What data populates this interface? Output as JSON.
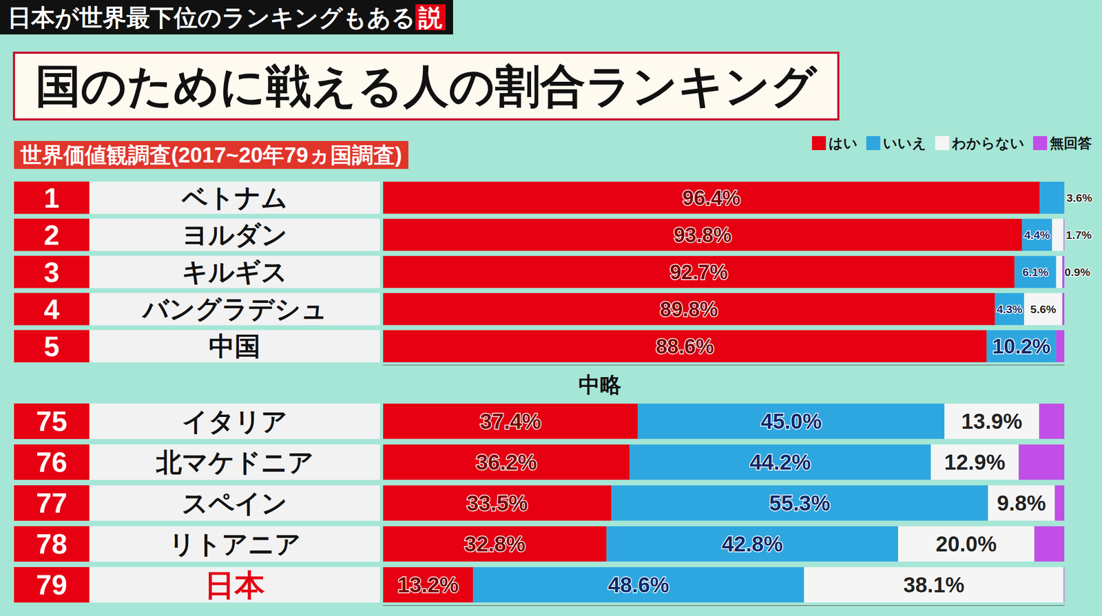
{
  "header": {
    "banner": "日本が世界最下位のランキングもある",
    "banner_tag": "説",
    "title": "国のために戦える人の割合ランキング",
    "subtitle": "世界価値観調査(2017~20年79ヵ国調査)"
  },
  "separator": "中略",
  "chart_data": [
    {
      "type": "bar",
      "orientation": "horizontal",
      "stacked": true,
      "data_labels": true,
      "tick_labels": false,
      "grid": false,
      "legend": "top-right",
      "xlim": [
        0,
        100
      ],
      "ranks": [
        1,
        2,
        3,
        4,
        5
      ],
      "categories": [
        "ベトナム",
        "ヨルダン",
        "キルギス",
        "バングラデシュ",
        "中国"
      ],
      "series": [
        {
          "name": "はい",
          "color": "#e60012",
          "values": [
            96.4,
            93.8,
            92.7,
            89.8,
            88.6
          ],
          "value_labels": [
            "96.4%",
            "93.8%",
            "92.7%",
            "89.8%",
            "88.6%"
          ]
        },
        {
          "name": "いいえ",
          "color": "#2ea7e0",
          "values": [
            3.6,
            4.4,
            6.1,
            4.3,
            10.2
          ],
          "value_labels": [
            "3.6%",
            "4.4%",
            "6.1%",
            "4.3%",
            "10.2%"
          ]
        },
        {
          "name": "わからない",
          "color": "#f5f5f5",
          "values": [
            0,
            1.7,
            0.9,
            5.6,
            0
          ],
          "value_labels": [
            null,
            "1.7%",
            "0.9%",
            "5.6%",
            null
          ]
        },
        {
          "name": "無回答",
          "color": "#c14ee6",
          "values": [
            0,
            0.1,
            0.3,
            0.3,
            1.2
          ],
          "value_labels": [
            null,
            null,
            null,
            null,
            null
          ]
        }
      ]
    },
    {
      "type": "bar",
      "orientation": "horizontal",
      "stacked": true,
      "data_labels": true,
      "tick_labels": false,
      "grid": false,
      "xlim": [
        0,
        100
      ],
      "ranks": [
        75,
        76,
        77,
        78,
        79
      ],
      "categories": [
        "イタリア",
        "北マケドニア",
        "スペイン",
        "リトアニア",
        "日本"
      ],
      "series": [
        {
          "name": "はい",
          "color": "#e60012",
          "values": [
            37.4,
            36.2,
            33.5,
            32.8,
            13.2
          ],
          "value_labels": [
            "37.4%",
            "36.2%",
            "33.5%",
            "32.8%",
            "13.2%"
          ]
        },
        {
          "name": "いいえ",
          "color": "#2ea7e0",
          "values": [
            45.0,
            44.2,
            55.3,
            42.8,
            48.6
          ],
          "value_labels": [
            "45.0%",
            "44.2%",
            "55.3%",
            "42.8%",
            "48.6%"
          ]
        },
        {
          "name": "わからない",
          "color": "#f5f5f5",
          "values": [
            13.9,
            12.9,
            9.8,
            20.0,
            38.1
          ],
          "value_labels": [
            "13.9%",
            "12.9%",
            "9.8%",
            "20.0%",
            "38.1%"
          ]
        },
        {
          "name": "無回答",
          "color": "#c14ee6",
          "values": [
            3.7,
            6.7,
            1.4,
            4.4,
            0.1
          ],
          "value_labels": [
            null,
            null,
            null,
            null,
            null
          ]
        }
      ]
    }
  ]
}
